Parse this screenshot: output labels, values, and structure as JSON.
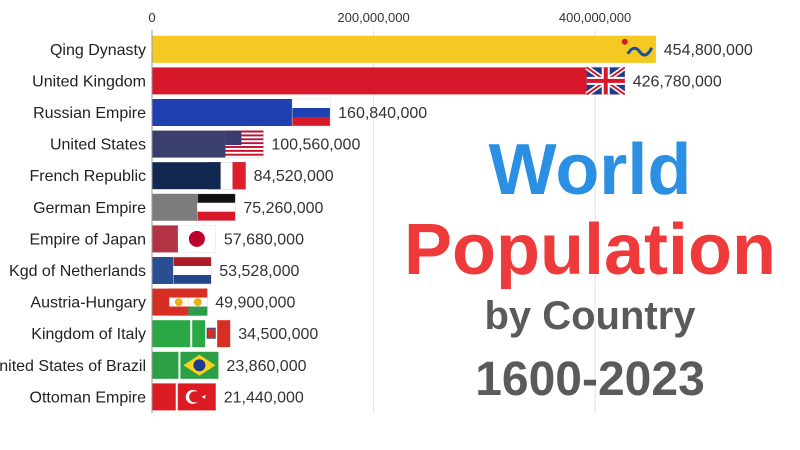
{
  "chart_data": {
    "type": "bar",
    "orientation": "horizontal",
    "categories": [
      "Qing Dynasty",
      "United Kingdom",
      "Russian Empire",
      "United States",
      "French Republic",
      "German Empire",
      "Empire of Japan",
      "Kgd of Netherlands",
      "Austria-Hungary",
      "Kingdom of Italy",
      "United States of Brazil",
      "Ottoman Empire"
    ],
    "values": [
      454800000,
      426780000,
      160840000,
      100560000,
      84520000,
      75260000,
      57680000,
      53528000,
      49900000,
      34500000,
      23860000,
      21440000
    ],
    "value_labels": [
      "454,800,000",
      "426,780,000",
      "160,840,000",
      "100,560,000",
      "84,520,000",
      "75,260,000",
      "57,680,000",
      "53,528,000",
      "49,900,000",
      "34,500,000",
      "23,860,000",
      "21,440,000"
    ],
    "colors": [
      "#f6c922",
      "#d7182a",
      "#1e40b0",
      "#3b3f6e",
      "#132850",
      "#7c7c7c",
      "#b33344",
      "#2a4e94",
      "#d62e22",
      "#29a845",
      "#2c9e45",
      "#db1c23"
    ],
    "flag_icons": [
      "qing-flag-icon",
      "uk-flag-icon",
      "russia-flag-icon",
      "usa-flag-icon",
      "france-flag-icon",
      "germany-flag-icon",
      "japan-flag-icon",
      "netherlands-flag-icon",
      "austria-hungary-flag-icon",
      "italy-flag-icon",
      "brazil-flag-icon",
      "turkey-flag-icon"
    ],
    "xlim": [
      0,
      520000000
    ],
    "x_ticks": [
      0,
      200000000,
      400000000
    ],
    "x_tick_labels": [
      "0",
      "200,000,000",
      "400,000,000"
    ],
    "grid": "vertical"
  },
  "title": {
    "line1": "World",
    "line2": "Population",
    "line3": "by Country",
    "line4": "1600-2023"
  }
}
